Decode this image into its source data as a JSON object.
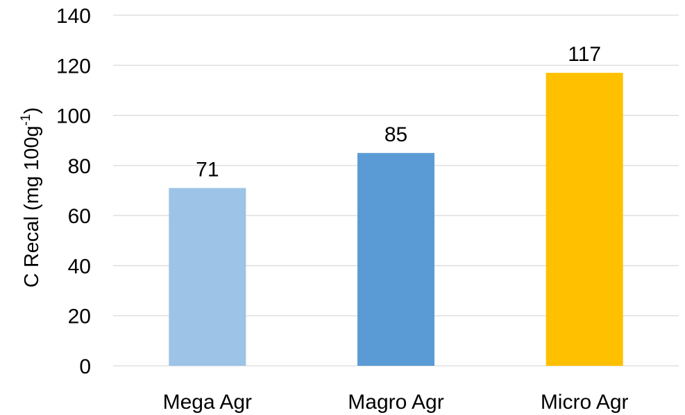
{
  "chart_data": {
    "type": "bar",
    "categories": [
      "Mega Agr",
      "Magro Agr",
      "Micro Agr"
    ],
    "values": [
      71,
      85,
      117
    ],
    "data_labels": [
      "71",
      "85",
      "117"
    ],
    "colors": [
      "#9DC3E6",
      "#5B9BD5",
      "#FFC000"
    ],
    "ylabel": {
      "main": "C Recal (mg 100g",
      "superscript": "-1",
      "close": ")"
    },
    "ylim": [
      0,
      140
    ],
    "yticks": [
      0,
      20,
      40,
      60,
      80,
      100,
      120,
      140
    ],
    "ytick_labels": [
      "0",
      "20",
      "40",
      "60",
      "80",
      "100",
      "120",
      "140"
    ],
    "grid": true,
    "gridline_color": "#D9D9D9",
    "legend": "none"
  }
}
